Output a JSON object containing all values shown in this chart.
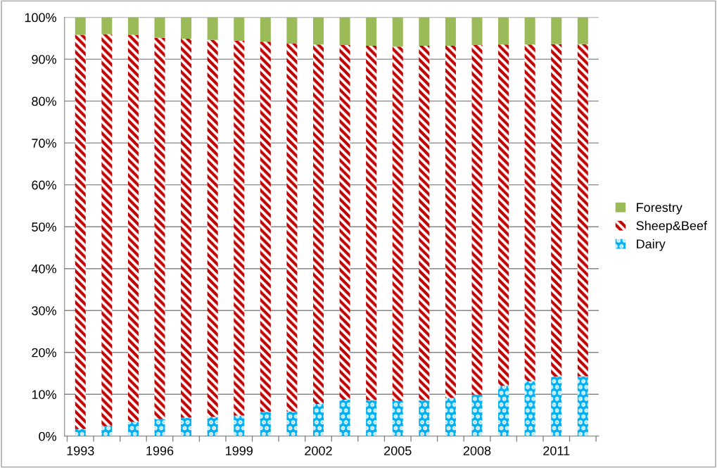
{
  "chart_data": {
    "type": "bar",
    "stacked": true,
    "grid": "y",
    "legend": "right",
    "categories": [
      "1993",
      null,
      null,
      "1996",
      null,
      null,
      "1999",
      null,
      null,
      "2002",
      null,
      null,
      "2005",
      null,
      null,
      "2008",
      null,
      null,
      "2011",
      null
    ],
    "series": [
      {
        "name": "Dairy",
        "color": "#00b0f0",
        "values": [
          1.7,
          2.5,
          3.4,
          4.1,
          4.4,
          4.6,
          4.9,
          5.8,
          5.9,
          7.7,
          8.7,
          8.6,
          8.4,
          8.6,
          9.1,
          9.9,
          12.0,
          13.1,
          14.2,
          14.3
        ]
      },
      {
        "name": "Sheep&Beef",
        "color": "#c00000",
        "values": [
          94.1,
          93.5,
          92.4,
          91.0,
          90.5,
          90.0,
          89.5,
          88.4,
          87.8,
          85.8,
          84.7,
          84.6,
          84.6,
          84.6,
          84.1,
          83.5,
          81.5,
          80.4,
          79.4,
          79.3
        ]
      },
      {
        "name": "Forestry",
        "color": "#9bbb59",
        "values": [
          4.2,
          4.0,
          4.2,
          4.9,
          5.1,
          5.4,
          5.6,
          5.8,
          6.3,
          6.5,
          6.6,
          6.8,
          7.0,
          6.8,
          6.8,
          6.6,
          6.5,
          6.5,
          6.4,
          6.4
        ]
      }
    ],
    "ylim": [
      0,
      100
    ],
    "yticks": [
      {
        "value": 0,
        "label": "0%"
      },
      {
        "value": 10,
        "label": "10%"
      },
      {
        "value": 20,
        "label": "20%"
      },
      {
        "value": 30,
        "label": "30%"
      },
      {
        "value": 40,
        "label": "40%"
      },
      {
        "value": 50,
        "label": "50%"
      },
      {
        "value": 60,
        "label": "60%"
      },
      {
        "value": 70,
        "label": "70%"
      },
      {
        "value": 80,
        "label": "80%"
      },
      {
        "value": 90,
        "label": "90%"
      },
      {
        "value": 100,
        "label": "100%"
      }
    ]
  }
}
